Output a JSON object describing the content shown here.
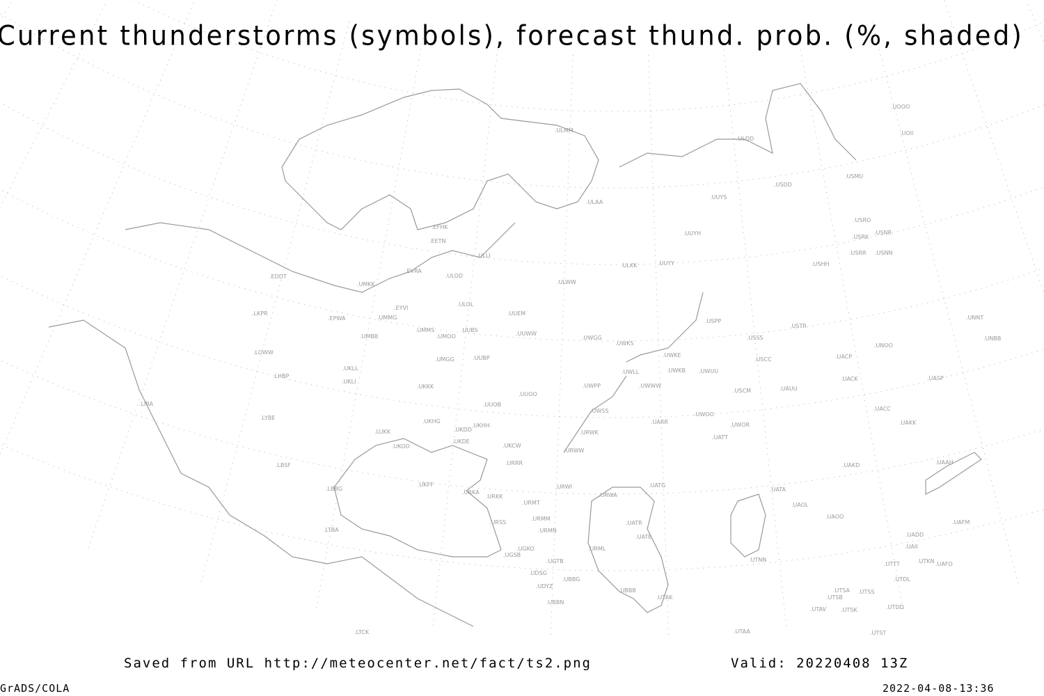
{
  "title": "Current thunderstorms (symbols), forecast thund. prob. (%, shaded)",
  "footer": {
    "source": "Saved from URL http://meteocenter.net/fact/ts2.png",
    "valid": "Valid: 20220408 13Z",
    "software": "GrADS/COLA",
    "timestamp": "2022-04-08-13:36"
  },
  "map": {
    "line_color": "#999999",
    "grid_style": "dotted",
    "stations": [
      "ULMM",
      "ULDD",
      "USDD",
      "USMU",
      "UOOO",
      "UOII",
      "UUYS",
      "ULAA",
      "UUYH",
      "USRO",
      "USRK",
      "USNR",
      "USRR",
      "USNN",
      "USHH",
      "ULKK",
      "UUYY",
      "ULWW",
      "EFHK",
      "EETN",
      "ULLI",
      "EVRA",
      "ULOD",
      "EDDT",
      "UMKK",
      "ULOL",
      "UUEM",
      "EYVI",
      "LKPR",
      "EPWA",
      "UMMG",
      "UMMS",
      "UUBS",
      "UMOO",
      "UMBB",
      "UUWW",
      "USPP",
      "USTR",
      "UNNT",
      "UNBB",
      "UWGG",
      "UWKS",
      "USSS",
      "UNOO",
      "UWKE",
      "UACP",
      "USCC",
      "LOWW",
      "UMGG",
      "UUBP",
      "UKLL",
      "UWLL",
      "UWKB",
      "UWUU",
      "UACK",
      "UASP",
      "UKLI",
      "LHBP",
      "UKKK",
      "UWPP",
      "UWWW",
      "USCM",
      "UAUU",
      "LIRA",
      "UUOO",
      "UUOB",
      "UACC",
      "LYBE",
      "UWSS",
      "UKHG",
      "UWOO",
      "UARR",
      "UWOR",
      "UAKK",
      "UKHH",
      "UKDD",
      "LUKK",
      "URWK",
      "UATT",
      "UKDE",
      "UKOO",
      "UKCW",
      "URWW",
      "LBSF",
      "URRR",
      "UAKD",
      "UAAH",
      "UKFF",
      "LBBG",
      "URWI",
      "UATG",
      "UATA",
      "URKA",
      "URKK",
      "URWA",
      "URMT",
      "UAOL",
      "UAOO",
      "URSS",
      "URMM",
      "UATR",
      "UAFM",
      "URMN",
      "LTBA",
      "UATE",
      "UADD",
      "UGKO",
      "URML",
      "UAII",
      "UGSB",
      "UTNN",
      "UGTB",
      "UTTT",
      "UTKN",
      "UAFO",
      "UDSG",
      "UTDL",
      "UBBG",
      "UDYZ",
      "UBBB",
      "UTSA",
      "UTSS",
      "UTSB",
      "UTAK",
      "UBBN",
      "UTAV",
      "UTSK",
      "UTDD",
      "LTCK",
      "UTAA",
      "UTST"
    ]
  }
}
